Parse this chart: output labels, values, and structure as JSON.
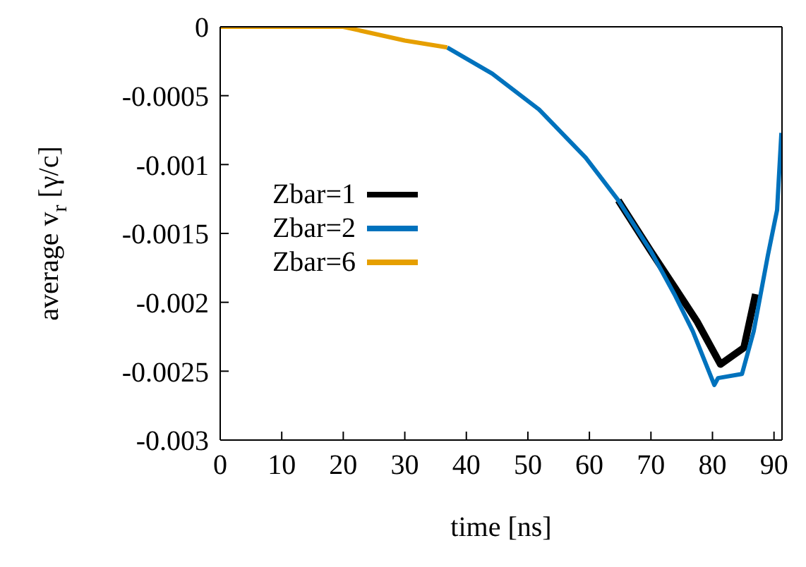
{
  "chart_data": {
    "type": "line",
    "xlabel": "time [ns]",
    "ylabel": "average v$_{r}$ [γ/c]",
    "xlim": [
      0,
      91.3
    ],
    "xticks": [
      0,
      10,
      20,
      30,
      40,
      50,
      60,
      70,
      80,
      90
    ],
    "ylim": [
      -0.003,
      0
    ],
    "yticks": [
      0,
      -0.0005,
      -0.001,
      -0.0015,
      -0.002,
      -0.0025,
      -0.003
    ],
    "grid": false,
    "legend": "left",
    "marker": "none",
    "line_style": "solid",
    "series": [
      {
        "name": "Zbar=1",
        "color": "#000000",
        "x": [
          64.7,
          70.0,
          74.0,
          77.5,
          81.3,
          85.1,
          87.0
        ],
        "values": [
          -0.00126,
          -0.00163,
          -0.0019,
          -0.00214,
          -0.00245,
          -0.00233,
          -0.00194
        ]
      },
      {
        "name": "Zbar=2",
        "color": "#0072bd",
        "x": [
          36.9,
          44.2,
          51.8,
          59.4,
          64.7,
          70.0,
          73.8,
          76.8,
          80.3,
          80.9,
          84.8,
          86.7,
          89.0,
          90.5,
          91.2
        ],
        "values": [
          -0.00015,
          -0.00034,
          -0.0006,
          -0.00095,
          -0.00126,
          -0.00163,
          -0.00194,
          -0.00221,
          -0.0026,
          -0.00255,
          -0.00252,
          -0.00221,
          -0.00166,
          -0.00133,
          -0.00077
        ]
      },
      {
        "name": "Zbar=6",
        "color": "#e69f00",
        "x": [
          0,
          10,
          20,
          30,
          36.9
        ],
        "values": [
          0,
          0,
          0,
          -0.0001,
          -0.00015
        ]
      }
    ]
  }
}
